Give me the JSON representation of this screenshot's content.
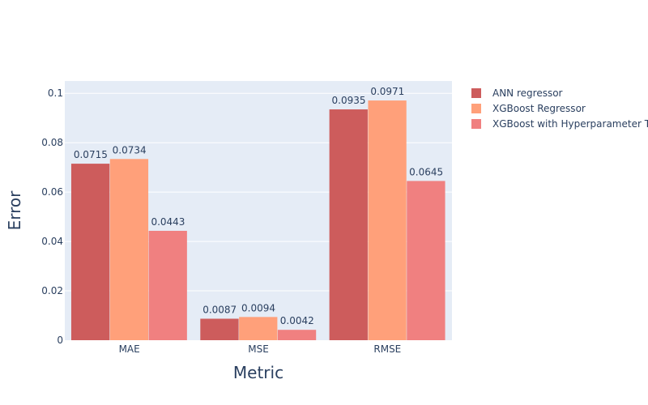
{
  "chart_data": {
    "type": "bar",
    "categories": [
      "MAE",
      "MSE",
      "RMSE"
    ],
    "series": [
      {
        "name": "ANN regressor",
        "color": "#cd5c5c",
        "values": [
          0.0715,
          0.0087,
          0.0935
        ],
        "labels": [
          "0.0715",
          "0.0087",
          "0.0935"
        ]
      },
      {
        "name": "XGBoost Regressor",
        "color": "#ffa07a",
        "values": [
          0.0734,
          0.0094,
          0.0971
        ],
        "labels": [
          "0.0734",
          "0.0094",
          "0.0971"
        ]
      },
      {
        "name": "XGBoost with Hyperparameter Tuning",
        "color": "#f08080",
        "values": [
          0.0443,
          0.0042,
          0.0645
        ],
        "labels": [
          "0.0443",
          "0.0042",
          "0.0645"
        ]
      }
    ],
    "xlabel": "Metric",
    "ylabel": "Error",
    "ylim": [
      0,
      0.105
    ],
    "yticks": [
      0,
      0.02,
      0.04,
      0.06,
      0.08,
      0.1
    ],
    "ytick_labels": [
      "0",
      "0.02",
      "0.04",
      "0.06",
      "0.08",
      "0.1"
    ],
    "grid": true,
    "plot_bgcolor": "#e5ecf6",
    "legend_position": "top-right"
  }
}
